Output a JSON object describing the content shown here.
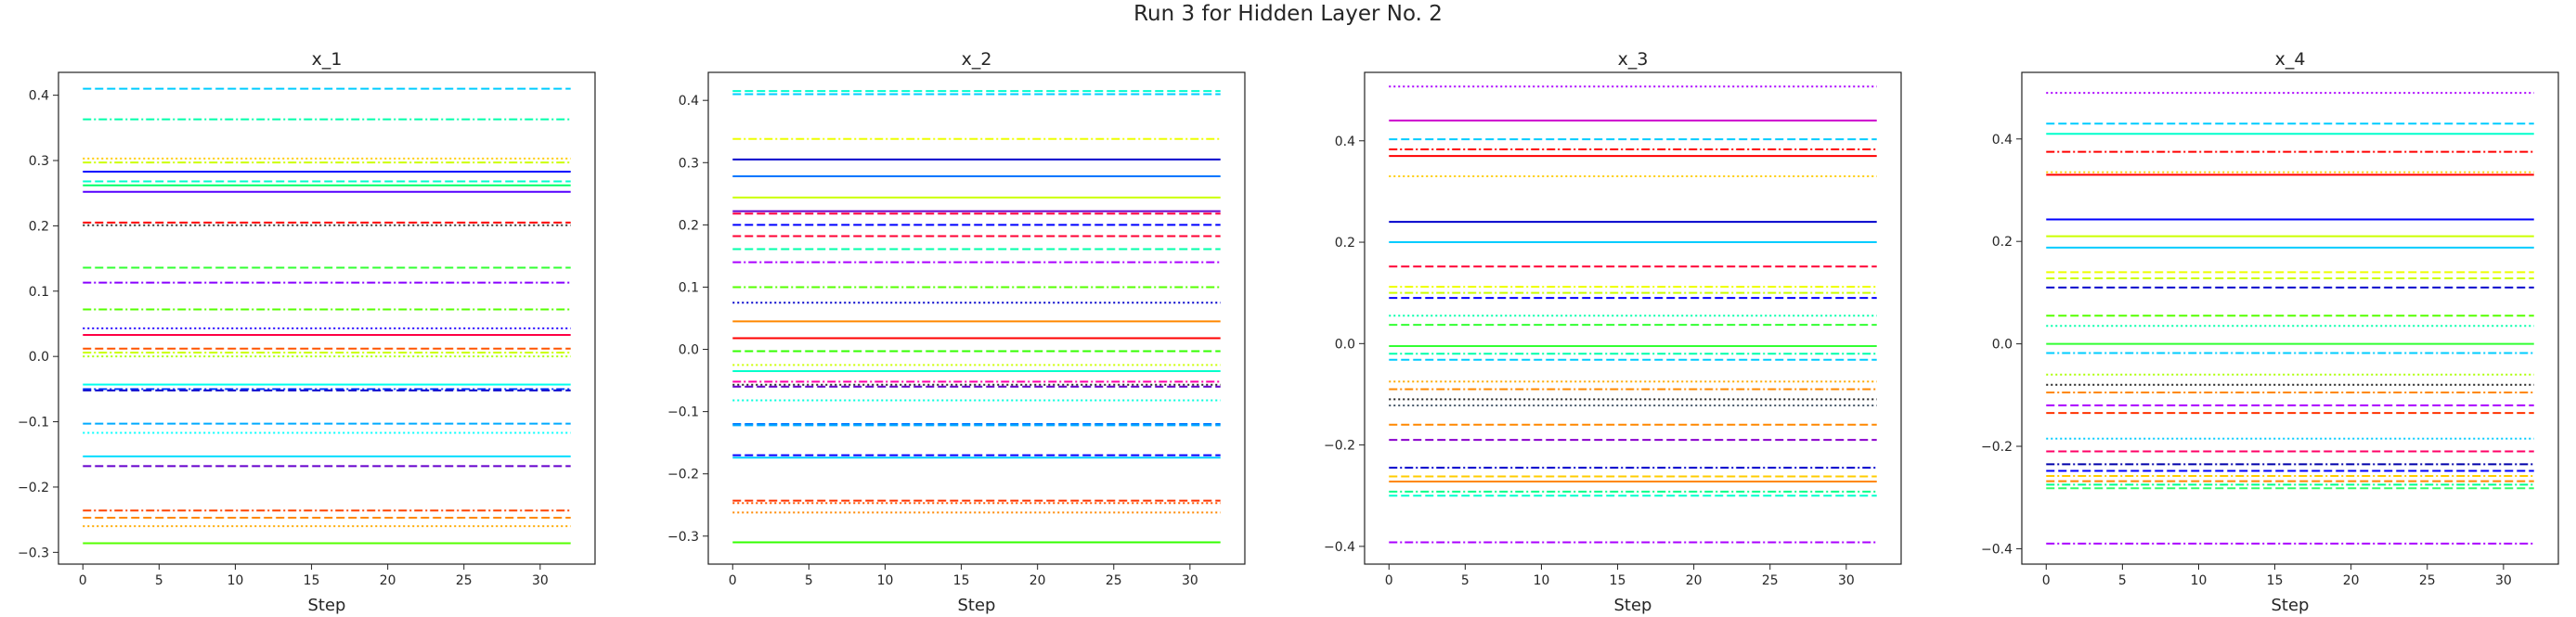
{
  "figure": {
    "title": "Run 3 for Hidden Layer No. 2"
  },
  "chart_data": [
    {
      "type": "line",
      "title": "x_1",
      "xlabel": "Step",
      "ylabel": "",
      "x_range": [
        0,
        32
      ],
      "xlim": [
        -1.6,
        33.6
      ],
      "ylim": [
        -0.318,
        0.435
      ],
      "xticks": [
        0,
        5,
        10,
        15,
        20,
        25,
        30
      ],
      "yticks": [
        -0.3,
        -0.2,
        -0.1,
        0.0,
        0.1,
        0.2,
        0.3,
        0.4
      ],
      "ytick_labels": [
        "−0.3",
        "−0.2",
        "−0.1",
        "0.0",
        "0.1",
        "0.2",
        "0.3",
        "0.4"
      ],
      "grid": false,
      "series": [
        {
          "value": 0.41,
          "color": "#00ccff",
          "style": "dashed"
        },
        {
          "value": 0.363,
          "color": "#00ffaa",
          "style": "dashdot"
        },
        {
          "value": 0.303,
          "color": "#ffcc00",
          "style": "dotted"
        },
        {
          "value": 0.297,
          "color": "#ccff00",
          "style": "dashdot"
        },
        {
          "value": 0.283,
          "color": "#0000ff",
          "style": "solid"
        },
        {
          "value": 0.268,
          "color": "#00ffcc",
          "style": "dashed"
        },
        {
          "value": 0.262,
          "color": "#00ff66",
          "style": "solid"
        },
        {
          "value": 0.252,
          "color": "#5500ff",
          "style": "solid"
        },
        {
          "value": 0.205,
          "color": "#ff0000",
          "style": "dashed"
        },
        {
          "value": 0.201,
          "color": "#333333",
          "style": "dotted"
        },
        {
          "value": 0.136,
          "color": "#33ff33",
          "style": "dashed"
        },
        {
          "value": 0.113,
          "color": "#8800ff",
          "style": "dashdot"
        },
        {
          "value": 0.072,
          "color": "#55ff00",
          "style": "dashdot"
        },
        {
          "value": 0.043,
          "color": "#2200ff",
          "style": "dotted"
        },
        {
          "value": 0.033,
          "color": "#ff0044",
          "style": "solid"
        },
        {
          "value": 0.012,
          "color": "#ff5500",
          "style": "dashed"
        },
        {
          "value": 0.006,
          "color": "#ccff00",
          "style": "dashdot"
        },
        {
          "value": 0.0,
          "color": "#aaff00",
          "style": "dotted"
        },
        {
          "value": -0.043,
          "color": "#00ffee",
          "style": "solid"
        },
        {
          "value": -0.05,
          "color": "#0044ff",
          "style": "dashdot"
        },
        {
          "value": -0.052,
          "color": "#0000cc",
          "style": "dashed"
        },
        {
          "value": -0.103,
          "color": "#00aaff",
          "style": "dashed"
        },
        {
          "value": -0.117,
          "color": "#00ffff",
          "style": "dotted"
        },
        {
          "value": -0.153,
          "color": "#00ddff",
          "style": "solid"
        },
        {
          "value": -0.168,
          "color": "#6600cc",
          "style": "dashed"
        },
        {
          "value": -0.236,
          "color": "#ff4400",
          "style": "dashdot"
        },
        {
          "value": -0.247,
          "color": "#ff8800",
          "style": "dashed"
        },
        {
          "value": -0.26,
          "color": "#ffaa00",
          "style": "dotted"
        },
        {
          "value": -0.286,
          "color": "#55ff00",
          "style": "solid"
        }
      ]
    },
    {
      "type": "line",
      "title": "x_2",
      "xlabel": "Step",
      "ylabel": "",
      "x_range": [
        0,
        32
      ],
      "xlim": [
        -1.6,
        33.6
      ],
      "ylim": [
        -0.345,
        0.445
      ],
      "xticks": [
        0,
        5,
        10,
        15,
        20,
        25,
        30
      ],
      "yticks": [
        -0.3,
        -0.2,
        -0.1,
        0.0,
        0.1,
        0.2,
        0.3,
        0.4
      ],
      "ytick_labels": [
        "−0.3",
        "−0.2",
        "−0.1",
        "0.0",
        "0.1",
        "0.2",
        "0.3",
        "0.4"
      ],
      "grid": false,
      "series": [
        {
          "value": 0.415,
          "color": "#00ffcc",
          "style": "dashed"
        },
        {
          "value": 0.41,
          "color": "#00ccff",
          "style": "dashed"
        },
        {
          "value": 0.338,
          "color": "#eeff00",
          "style": "dashdot"
        },
        {
          "value": 0.305,
          "color": "#0000cc",
          "style": "solid"
        },
        {
          "value": 0.278,
          "color": "#0077ff",
          "style": "solid"
        },
        {
          "value": 0.244,
          "color": "#ccff00",
          "style": "solid"
        },
        {
          "value": 0.222,
          "color": "#6600cc",
          "style": "solid"
        },
        {
          "value": 0.218,
          "color": "#ff0044",
          "style": "dashed"
        },
        {
          "value": 0.2,
          "color": "#0000ff",
          "style": "dashed"
        },
        {
          "value": 0.182,
          "color": "#ff0033",
          "style": "dashed"
        },
        {
          "value": 0.161,
          "color": "#00ffaa",
          "style": "dashed"
        },
        {
          "value": 0.14,
          "color": "#aa00ff",
          "style": "dashdot"
        },
        {
          "value": 0.1,
          "color": "#55ff00",
          "style": "dashdot"
        },
        {
          "value": 0.075,
          "color": "#0000cc",
          "style": "dotted"
        },
        {
          "value": 0.045,
          "color": "#ff8800",
          "style": "solid"
        },
        {
          "value": 0.018,
          "color": "#ff0000",
          "style": "solid"
        },
        {
          "value": -0.003,
          "color": "#33ff00",
          "style": "dashed"
        },
        {
          "value": -0.025,
          "color": "#ccff00",
          "style": "dotted"
        },
        {
          "value": -0.035,
          "color": "#00ffcc",
          "style": "solid"
        },
        {
          "value": -0.052,
          "color": "#ff00aa",
          "style": "dashdot"
        },
        {
          "value": -0.057,
          "color": "#222222",
          "style": "dotted"
        },
        {
          "value": -0.06,
          "color": "#6600cc",
          "style": "dashed"
        },
        {
          "value": -0.082,
          "color": "#00ffdd",
          "style": "dotted"
        },
        {
          "value": -0.12,
          "color": "#0077ff",
          "style": "dashed"
        },
        {
          "value": -0.122,
          "color": "#00aaff",
          "style": "dashed"
        },
        {
          "value": -0.17,
          "color": "#0000ff",
          "style": "dashed"
        },
        {
          "value": -0.174,
          "color": "#00ccff",
          "style": "solid"
        },
        {
          "value": -0.243,
          "color": "#ff3300",
          "style": "dashed"
        },
        {
          "value": -0.247,
          "color": "#ff5500",
          "style": "dotted"
        },
        {
          "value": -0.262,
          "color": "#ff8800",
          "style": "dotted"
        },
        {
          "value": -0.31,
          "color": "#33ff00",
          "style": "solid"
        }
      ]
    },
    {
      "type": "line",
      "title": "x_3",
      "xlabel": "Step",
      "ylabel": "",
      "x_range": [
        0,
        32
      ],
      "xlim": [
        -1.6,
        33.6
      ],
      "ylim": [
        -0.435,
        0.535
      ],
      "xticks": [
        0,
        5,
        10,
        15,
        20,
        25,
        30
      ],
      "yticks": [
        -0.4,
        -0.2,
        0.0,
        0.2,
        0.4
      ],
      "ytick_labels": [
        "−0.4",
        "−0.2",
        "0.0",
        "0.2",
        "0.4"
      ],
      "grid": false,
      "series": [
        {
          "value": 0.507,
          "color": "#aa00ff",
          "style": "dotted"
        },
        {
          "value": 0.44,
          "color": "#cc00cc",
          "style": "solid"
        },
        {
          "value": 0.403,
          "color": "#00ccff",
          "style": "dashed"
        },
        {
          "value": 0.383,
          "color": "#ff0000",
          "style": "dashdot"
        },
        {
          "value": 0.37,
          "color": "#ff0000",
          "style": "solid"
        },
        {
          "value": 0.33,
          "color": "#ffcc00",
          "style": "dotted"
        },
        {
          "value": 0.24,
          "color": "#0000cc",
          "style": "solid"
        },
        {
          "value": 0.2,
          "color": "#00ccff",
          "style": "solid"
        },
        {
          "value": 0.152,
          "color": "#ff0033",
          "style": "dashed"
        },
        {
          "value": 0.112,
          "color": "#eeff00",
          "style": "dashdot"
        },
        {
          "value": 0.1,
          "color": "#ccff00",
          "style": "dashdot"
        },
        {
          "value": 0.09,
          "color": "#0000ff",
          "style": "dashed"
        },
        {
          "value": 0.055,
          "color": "#00ffaa",
          "style": "dotted"
        },
        {
          "value": 0.037,
          "color": "#33ff33",
          "style": "dashed"
        },
        {
          "value": -0.005,
          "color": "#33ff33",
          "style": "solid"
        },
        {
          "value": -0.02,
          "color": "#00ffaa",
          "style": "dashdot"
        },
        {
          "value": -0.032,
          "color": "#00ccff",
          "style": "dashed"
        },
        {
          "value": -0.075,
          "color": "#ffaa00",
          "style": "dotted"
        },
        {
          "value": -0.09,
          "color": "#ff8800",
          "style": "dashdot"
        },
        {
          "value": -0.11,
          "color": "#222222",
          "style": "dotted"
        },
        {
          "value": -0.122,
          "color": "#445566",
          "style": "dotted"
        },
        {
          "value": -0.16,
          "color": "#ff8800",
          "style": "dashed"
        },
        {
          "value": -0.19,
          "color": "#8800cc",
          "style": "dashed"
        },
        {
          "value": -0.245,
          "color": "#0000cc",
          "style": "dashdot"
        },
        {
          "value": -0.262,
          "color": "#ffcc00",
          "style": "dashed"
        },
        {
          "value": -0.272,
          "color": "#ff8800",
          "style": "solid"
        },
        {
          "value": -0.292,
          "color": "#00ff88",
          "style": "dashdot"
        },
        {
          "value": -0.3,
          "color": "#00ffcc",
          "style": "dashed"
        },
        {
          "value": -0.392,
          "color": "#aa00ff",
          "style": "dashdot"
        }
      ]
    },
    {
      "type": "line",
      "title": "x_4",
      "xlabel": "Step",
      "ylabel": "",
      "x_range": [
        0,
        32
      ],
      "xlim": [
        -1.6,
        33.6
      ],
      "ylim": [
        -0.43,
        0.53
      ],
      "xticks": [
        0,
        5,
        10,
        15,
        20,
        25,
        30
      ],
      "yticks": [
        -0.4,
        -0.2,
        0.0,
        0.2,
        0.4
      ],
      "ytick_labels": [
        "−0.4",
        "−0.2",
        "0.0",
        "0.2",
        "0.4"
      ],
      "grid": false,
      "series": [
        {
          "value": 0.49,
          "color": "#aa00ff",
          "style": "dotted"
        },
        {
          "value": 0.43,
          "color": "#00ccff",
          "style": "dashed"
        },
        {
          "value": 0.41,
          "color": "#00ffcc",
          "style": "solid"
        },
        {
          "value": 0.375,
          "color": "#ff0000",
          "style": "dashdot"
        },
        {
          "value": 0.335,
          "color": "#ffcc00",
          "style": "dotted"
        },
        {
          "value": 0.33,
          "color": "#ff0000",
          "style": "solid"
        },
        {
          "value": 0.243,
          "color": "#0000ff",
          "style": "solid"
        },
        {
          "value": 0.21,
          "color": "#ccff00",
          "style": "solid"
        },
        {
          "value": 0.188,
          "color": "#00ccff",
          "style": "solid"
        },
        {
          "value": 0.14,
          "color": "#eeff00",
          "style": "dashed"
        },
        {
          "value": 0.128,
          "color": "#ccff00",
          "style": "dashed"
        },
        {
          "value": 0.11,
          "color": "#0000cc",
          "style": "dashed"
        },
        {
          "value": 0.055,
          "color": "#55ff00",
          "style": "dashed"
        },
        {
          "value": 0.035,
          "color": "#00ffaa",
          "style": "dotted"
        },
        {
          "value": 0.0,
          "color": "#33ff33",
          "style": "solid"
        },
        {
          "value": -0.018,
          "color": "#00ccff",
          "style": "dashdot"
        },
        {
          "value": -0.06,
          "color": "#aaff00",
          "style": "dotted"
        },
        {
          "value": -0.08,
          "color": "#222222",
          "style": "dotted"
        },
        {
          "value": -0.095,
          "color": "#ff8800",
          "style": "dashdot"
        },
        {
          "value": -0.12,
          "color": "#aa00ff",
          "style": "dashed"
        },
        {
          "value": -0.135,
          "color": "#ff3300",
          "style": "dashed"
        },
        {
          "value": -0.185,
          "color": "#00ccff",
          "style": "dotted"
        },
        {
          "value": -0.21,
          "color": "#ff0066",
          "style": "dashed"
        },
        {
          "value": -0.235,
          "color": "#0000aa",
          "style": "dashdot"
        },
        {
          "value": -0.248,
          "color": "#0000ff",
          "style": "dashed"
        },
        {
          "value": -0.258,
          "color": "#ffcc00",
          "style": "dashdot"
        },
        {
          "value": -0.268,
          "color": "#ff8800",
          "style": "dashed"
        },
        {
          "value": -0.275,
          "color": "#00ff88",
          "style": "dashdot"
        },
        {
          "value": -0.282,
          "color": "#33ff66",
          "style": "dashed"
        },
        {
          "value": -0.39,
          "color": "#aa00ff",
          "style": "dashdot"
        }
      ]
    }
  ]
}
